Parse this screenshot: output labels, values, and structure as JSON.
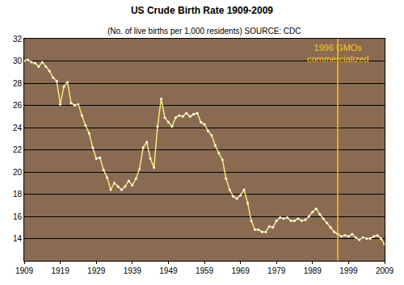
{
  "chart_data": {
    "type": "line",
    "title": "US Crude Birth Rate 1909-2009",
    "subtitle": "(No. of live births per 1,000 residents) SOURCE: CDC",
    "x": [
      1909,
      1910,
      1911,
      1912,
      1913,
      1914,
      1915,
      1916,
      1917,
      1918,
      1919,
      1920,
      1921,
      1922,
      1923,
      1924,
      1925,
      1926,
      1927,
      1928,
      1929,
      1930,
      1931,
      1932,
      1933,
      1934,
      1935,
      1936,
      1937,
      1938,
      1939,
      1940,
      1941,
      1942,
      1943,
      1944,
      1945,
      1946,
      1947,
      1948,
      1949,
      1950,
      1951,
      1952,
      1953,
      1954,
      1955,
      1956,
      1957,
      1958,
      1959,
      1960,
      1961,
      1962,
      1963,
      1964,
      1965,
      1966,
      1967,
      1968,
      1969,
      1970,
      1971,
      1972,
      1973,
      1974,
      1975,
      1976,
      1977,
      1978,
      1979,
      1980,
      1981,
      1982,
      1983,
      1984,
      1985,
      1986,
      1987,
      1988,
      1989,
      1990,
      1991,
      1992,
      1993,
      1994,
      1995,
      1996,
      1997,
      1998,
      1999,
      2000,
      2001,
      2002,
      2003,
      2004,
      2005,
      2006,
      2007,
      2008,
      2009
    ],
    "values": [
      30.0,
      30.1,
      29.9,
      29.8,
      29.5,
      29.9,
      29.5,
      29.1,
      28.5,
      28.2,
      26.1,
      27.7,
      28.1,
      26.2,
      26.0,
      26.1,
      25.1,
      24.2,
      23.5,
      22.2,
      21.2,
      21.3,
      20.2,
      19.5,
      18.4,
      19.0,
      18.7,
      18.4,
      18.7,
      19.2,
      18.8,
      19.4,
      20.3,
      22.2,
      22.7,
      21.2,
      20.4,
      24.1,
      26.6,
      24.9,
      24.5,
      24.1,
      24.9,
      25.1,
      25.0,
      25.3,
      25.0,
      25.2,
      25.3,
      24.5,
      24.3,
      23.7,
      23.3,
      22.4,
      21.7,
      21.1,
      19.4,
      18.4,
      17.8,
      17.6,
      17.9,
      18.4,
      17.2,
      15.6,
      14.8,
      14.8,
      14.6,
      14.6,
      15.1,
      15.0,
      15.6,
      15.9,
      15.8,
      15.9,
      15.6,
      15.6,
      15.8,
      15.6,
      15.7,
      16.0,
      16.4,
      16.7,
      16.2,
      15.8,
      15.4,
      15.0,
      14.6,
      14.4,
      14.2,
      14.3,
      14.2,
      14.4,
      14.1,
      13.9,
      14.1,
      14.0,
      14.0,
      14.2,
      14.3,
      14.0,
      13.5
    ],
    "color": "#f3ea7a",
    "marker": "circle",
    "line_style": "solid",
    "xlim": [
      1909,
      2009
    ],
    "xticks": [
      1909,
      1919,
      1929,
      1939,
      1949,
      1959,
      1969,
      1979,
      1989,
      1999,
      2009
    ],
    "ylim": [
      12,
      32
    ],
    "yticks": [
      14,
      16,
      18,
      20,
      22,
      24,
      26,
      28,
      30,
      32
    ],
    "grid": true,
    "annotations": [
      {
        "x": 1996,
        "text": [
          "1996 GMOs",
          "commercialized"
        ],
        "color": "#f5c518"
      }
    ]
  }
}
